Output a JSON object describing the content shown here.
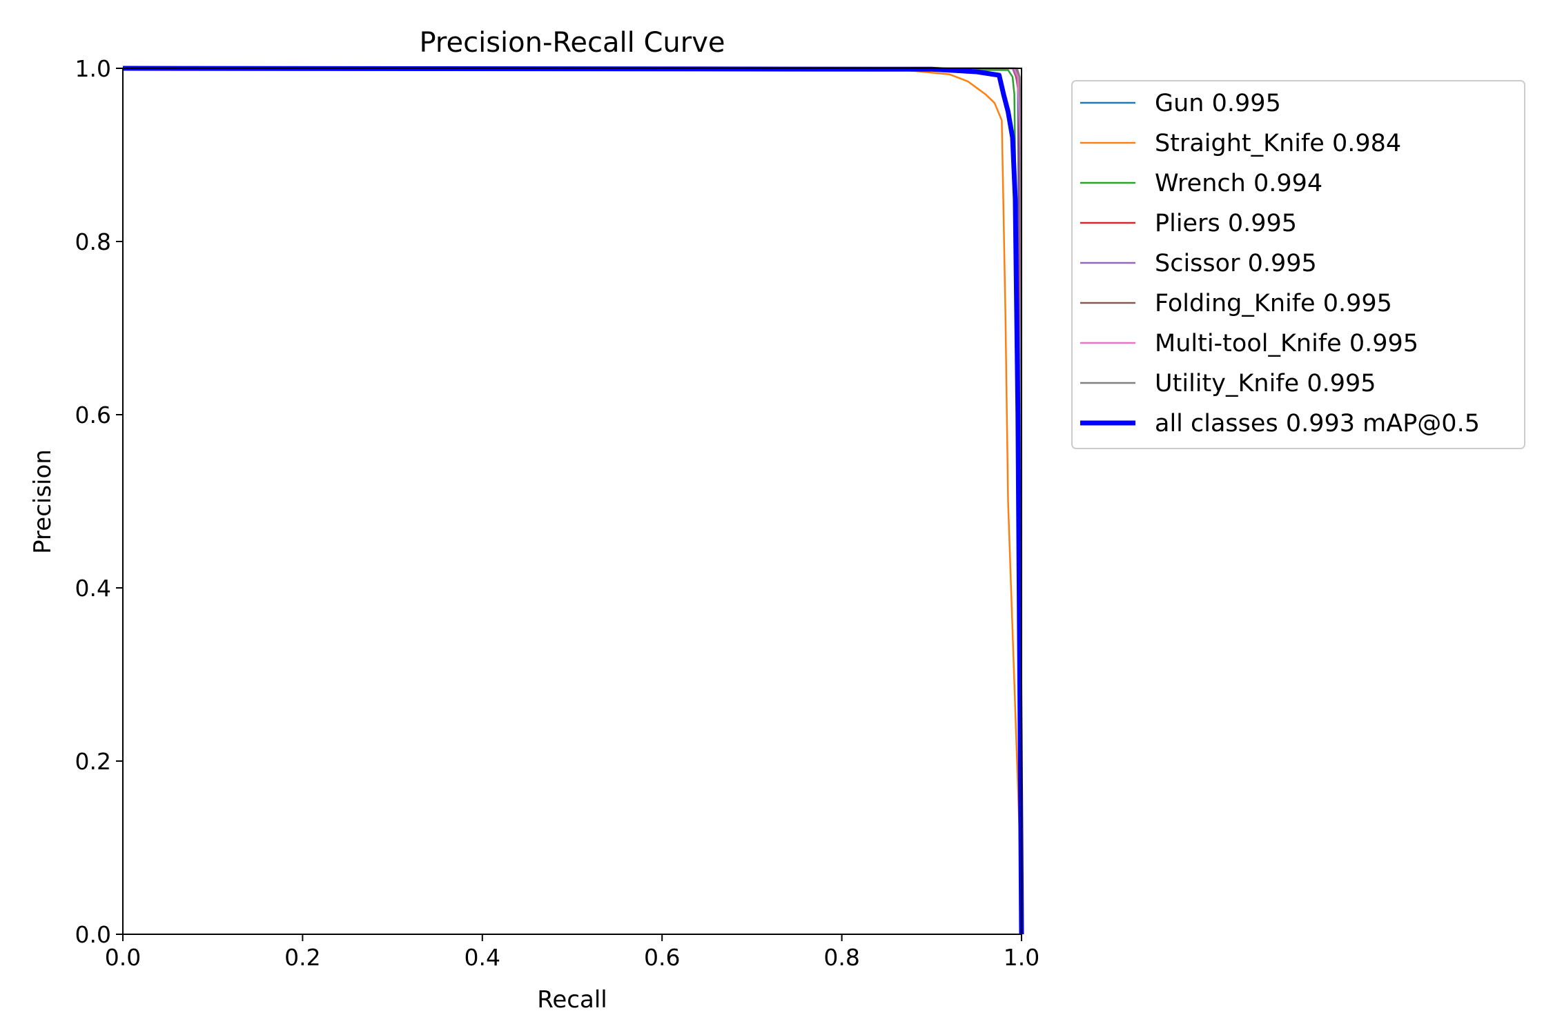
{
  "chart_data": {
    "type": "line",
    "title": "Precision-Recall Curve",
    "xlabel": "Recall",
    "ylabel": "Precision",
    "xlim": [
      0,
      1
    ],
    "ylim": [
      0,
      1
    ],
    "xticks": [
      "0.0",
      "0.2",
      "0.4",
      "0.6",
      "0.8",
      "1.0"
    ],
    "yticks": [
      "0.0",
      "0.2",
      "0.4",
      "0.6",
      "0.8",
      "1.0"
    ],
    "grid": false,
    "legend_position": "outside-right-top",
    "series": [
      {
        "name": "Gun",
        "value_label": "0.995",
        "color": "#1f77b4",
        "line_width": "thin",
        "points": [
          [
            0,
            1.0
          ],
          [
            0.99,
            1.0
          ],
          [
            0.993,
            0.995
          ],
          [
            0.996,
            0.98
          ],
          [
            0.998,
            0.6
          ],
          [
            1.0,
            0.02
          ]
        ]
      },
      {
        "name": "Straight_Knife",
        "value_label": "0.984",
        "color": "#ff7f0e",
        "line_width": "thin",
        "points": [
          [
            0,
            1.0
          ],
          [
            0.85,
            0.999
          ],
          [
            0.88,
            0.997
          ],
          [
            0.9,
            0.995
          ],
          [
            0.92,
            0.993
          ],
          [
            0.94,
            0.985
          ],
          [
            0.96,
            0.97
          ],
          [
            0.97,
            0.96
          ],
          [
            0.978,
            0.94
          ],
          [
            0.982,
            0.72
          ],
          [
            0.985,
            0.5
          ],
          [
            0.99,
            0.35
          ],
          [
            0.995,
            0.2
          ],
          [
            1.0,
            0.05
          ]
        ]
      },
      {
        "name": "Wrench",
        "value_label": "0.994",
        "color": "#2ca02c",
        "line_width": "thin",
        "points": [
          [
            0,
            1.0
          ],
          [
            0.985,
            0.998
          ],
          [
            0.99,
            0.99
          ],
          [
            0.992,
            0.97
          ],
          [
            0.994,
            0.8
          ],
          [
            0.997,
            0.4
          ],
          [
            1.0,
            0.02
          ]
        ]
      },
      {
        "name": "Pliers",
        "value_label": "0.995",
        "color": "#d62728",
        "line_width": "thin",
        "points": [
          [
            0,
            1.0
          ],
          [
            0.99,
            1.0
          ],
          [
            0.994,
            0.99
          ],
          [
            0.997,
            0.97
          ],
          [
            0.999,
            0.5
          ],
          [
            1.0,
            0.02
          ]
        ]
      },
      {
        "name": "Scissor",
        "value_label": "0.995",
        "color": "#9467bd",
        "line_width": "thin",
        "points": [
          [
            0,
            1.0
          ],
          [
            0.99,
            1.0
          ],
          [
            0.995,
            0.99
          ],
          [
            0.998,
            0.95
          ],
          [
            0.999,
            0.5
          ],
          [
            1.0,
            0.02
          ]
        ]
      },
      {
        "name": "Folding_Knife",
        "value_label": "0.995",
        "color": "#8c564b",
        "line_width": "thin",
        "points": [
          [
            0,
            1.0
          ],
          [
            0.993,
            1.0
          ],
          [
            0.997,
            0.99
          ],
          [
            0.999,
            0.9
          ],
          [
            1.0,
            0.02
          ]
        ]
      },
      {
        "name": "Multi-tool_Knife",
        "value_label": "0.995",
        "color": "#e377c2",
        "line_width": "thin",
        "points": [
          [
            0,
            1.0
          ],
          [
            0.992,
            1.0
          ],
          [
            0.996,
            0.99
          ],
          [
            0.999,
            0.9
          ],
          [
            1.0,
            0.02
          ]
        ]
      },
      {
        "name": "Utility_Knife",
        "value_label": "0.995",
        "color": "#7f7f7f",
        "line_width": "thin",
        "points": [
          [
            0,
            1.0
          ],
          [
            0.995,
            1.0
          ],
          [
            0.998,
            0.99
          ],
          [
            0.999,
            0.95
          ],
          [
            1.0,
            0.02
          ]
        ]
      },
      {
        "name": "all classes",
        "value_label": "0.993 mAP@0.5",
        "color": "#0000ff",
        "line_width": "thick",
        "points": [
          [
            0,
            1.0
          ],
          [
            0.9,
            0.999
          ],
          [
            0.95,
            0.996
          ],
          [
            0.975,
            0.992
          ],
          [
            0.98,
            0.97
          ],
          [
            0.985,
            0.95
          ],
          [
            0.99,
            0.92
          ],
          [
            0.993,
            0.85
          ],
          [
            0.996,
            0.6
          ],
          [
            0.998,
            0.3
          ],
          [
            1.0,
            0.0
          ]
        ]
      }
    ]
  }
}
